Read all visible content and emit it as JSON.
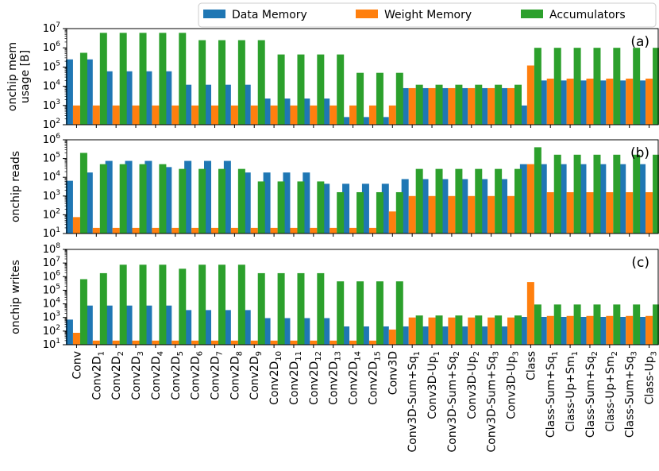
{
  "chart_data": {
    "type": "bar",
    "yscale": "log",
    "categories": [
      "Conv",
      "Conv2D_1",
      "Conv2D_2",
      "Conv2D_3",
      "Conv2D_4",
      "Conv2D_5",
      "Conv2D_6",
      "Conv2D_7",
      "Conv2D_8",
      "Conv2D_9",
      "Conv2D_10",
      "Conv2D_11",
      "Conv2D_12",
      "Conv2D_13",
      "Conv2D_14",
      "Conv2D_15",
      "Conv3D",
      "Conv3D-Sum+Sq_1",
      "Conv3D-Up_1",
      "Conv3D-Sum+Sq_2",
      "Conv3D-Up_2",
      "Conv3D-Sum+Sq_3",
      "Conv3D-Up_3",
      "Class",
      "Class-Sum+Sq_1",
      "Class-Up+Sm_1",
      "Class-Sum+Sq_2",
      "Class-Up+Sm_2",
      "Class-Sum+Sq_3",
      "Class-Up_3"
    ],
    "category_display": [
      {
        "base": "Conv",
        "sub": ""
      },
      {
        "base": "Conv2D",
        "sub": "1"
      },
      {
        "base": "Conv2D",
        "sub": "2"
      },
      {
        "base": "Conv2D",
        "sub": "3"
      },
      {
        "base": "Conv2D",
        "sub": "4"
      },
      {
        "base": "Conv2D",
        "sub": "5"
      },
      {
        "base": "Conv2D",
        "sub": "6"
      },
      {
        "base": "Conv2D",
        "sub": "7"
      },
      {
        "base": "Conv2D",
        "sub": "8"
      },
      {
        "base": "Conv2D",
        "sub": "9"
      },
      {
        "base": "Conv2D",
        "sub": "10"
      },
      {
        "base": "Conv2D",
        "sub": "11"
      },
      {
        "base": "Conv2D",
        "sub": "12"
      },
      {
        "base": "Conv2D",
        "sub": "13"
      },
      {
        "base": "Conv2D",
        "sub": "14"
      },
      {
        "base": "Conv2D",
        "sub": "15"
      },
      {
        "base": "Conv3D",
        "sub": ""
      },
      {
        "base": "Conv3D-Sum+Sq",
        "sub": "1"
      },
      {
        "base": "Conv3D-Up",
        "sub": "1"
      },
      {
        "base": "Conv3D-Sum+Sq",
        "sub": "2"
      },
      {
        "base": "Conv3D-Up",
        "sub": "2"
      },
      {
        "base": "Conv3D-Sum+Sq",
        "sub": "3"
      },
      {
        "base": "Conv3D-Up",
        "sub": "3"
      },
      {
        "base": "Class",
        "sub": ""
      },
      {
        "base": "Class-Sum+Sq",
        "sub": "1"
      },
      {
        "base": "Class-Up+Sm",
        "sub": "1"
      },
      {
        "base": "Class-Sum+Sq",
        "sub": "2"
      },
      {
        "base": "Class-Up+Sm",
        "sub": "2"
      },
      {
        "base": "Class-Sum+Sq",
        "sub": "3"
      },
      {
        "base": "Class-Up",
        "sub": "3"
      }
    ],
    "legend": {
      "placement": "top-right",
      "entries": [
        {
          "name": "Data Memory",
          "color": "#1f77b4"
        },
        {
          "name": "Weight Memory",
          "color": "#ff7f0e"
        },
        {
          "name": "Accumulators",
          "color": "#2ca02c"
        }
      ]
    },
    "panels": [
      {
        "id": "a",
        "tag": "(a)",
        "ylabel_lines": [
          "onchip mem",
          "usage [B]"
        ],
        "ylim_exp": [
          2,
          7
        ],
        "series": [
          {
            "name": "Data Memory",
            "values": [
              250000,
              250000,
              60000,
              60000,
              60000,
              60000,
              12000,
              12000,
              12000,
              12000,
              2300,
              2300,
              2300,
              2300,
              250,
              250,
              250,
              8000,
              8000,
              8000,
              8000,
              8000,
              8000,
              1000,
              20000,
              20000,
              20000,
              20000,
              20000,
              20000
            ]
          },
          {
            "name": "Weight Memory",
            "values": [
              1000,
              1000,
              1000,
              1000,
              1000,
              1000,
              1000,
              1000,
              1000,
              1000,
              1000,
              1000,
              1000,
              1000,
              1000,
              1000,
              1000,
              8000,
              8000,
              8000,
              8000,
              8000,
              8000,
              120000,
              25000,
              25000,
              25000,
              25000,
              25000,
              25000
            ]
          },
          {
            "name": "Accumulators",
            "values": [
              550000,
              6000000,
              6000000,
              6000000,
              6000000,
              6000000,
              2500000,
              2500000,
              2500000,
              2500000,
              450000,
              450000,
              450000,
              450000,
              50000,
              50000,
              50000,
              12000,
              12000,
              12000,
              12000,
              12000,
              12000,
              1000000,
              1000000,
              1000000,
              1000000,
              1000000,
              1000000,
              1000000
            ]
          }
        ]
      },
      {
        "id": "b",
        "tag": "(b)",
        "ylabel_lines": [
          "onchip reads"
        ],
        "ylim_exp": [
          1,
          6
        ],
        "series": [
          {
            "name": "Data Memory",
            "values": [
              6500,
              18000,
              75000,
              75000,
              75000,
              35000,
              75000,
              75000,
              75000,
              18000,
              18000,
              18000,
              18000,
              4500,
              4500,
              4500,
              4500,
              8000,
              8000,
              8000,
              8000,
              8000,
              8000,
              50000,
              50000,
              50000,
              50000,
              50000,
              50000,
              50000
            ]
          },
          {
            "name": "Weight Memory",
            "values": [
              75,
              20,
              20,
              20,
              20,
              20,
              20,
              20,
              20,
              20,
              20,
              20,
              20,
              20,
              20,
              20,
              150,
              1000,
              1000,
              1000,
              1000,
              1000,
              1000,
              50000,
              1600,
              1600,
              1600,
              1600,
              1600,
              1600
            ]
          },
          {
            "name": "Accumulators",
            "values": [
              200000,
              50000,
              50000,
              50000,
              50000,
              28000,
              28000,
              28000,
              28000,
              6000,
              6000,
              6000,
              6000,
              1600,
              1600,
              1600,
              1600,
              28000,
              28000,
              28000,
              28000,
              28000,
              28000,
              400000,
              160000,
              160000,
              160000,
              160000,
              160000,
              160000
            ]
          }
        ]
      },
      {
        "id": "c",
        "tag": "(c)",
        "ylabel_lines": [
          "onchip writes"
        ],
        "ylim_exp": [
          1,
          8
        ],
        "series": [
          {
            "name": "Data Memory",
            "values": [
              700,
              7500,
              7500,
              7500,
              7500,
              7500,
              3500,
              3500,
              3500,
              3500,
              900,
              900,
              900,
              900,
              220,
              220,
              220,
              220,
              220,
              220,
              220,
              220,
              220,
              1100,
              1100,
              1100,
              1100,
              1100,
              1100,
              1100
            ]
          },
          {
            "name": "Weight Memory",
            "values": [
              75,
              20,
              20,
              20,
              20,
              20,
              20,
              20,
              20,
              20,
              20,
              20,
              20,
              20,
              20,
              20,
              130,
              1000,
              1000,
              1000,
              1000,
              1000,
              1000,
              400000,
              1300,
              1300,
              1300,
              1300,
              1300,
              1300
            ]
          },
          {
            "name": "Accumulators",
            "values": [
              650000,
              1800000,
              7500000,
              7500000,
              7500000,
              3800000,
              7500000,
              7500000,
              7500000,
              1800000,
              1800000,
              1800000,
              1800000,
              450000,
              450000,
              450000,
              450000,
              1400,
              1400,
              1400,
              1400,
              1400,
              1400,
              9000,
              9000,
              9000,
              9000,
              9000,
              9000,
              9000
            ]
          }
        ]
      }
    ]
  }
}
